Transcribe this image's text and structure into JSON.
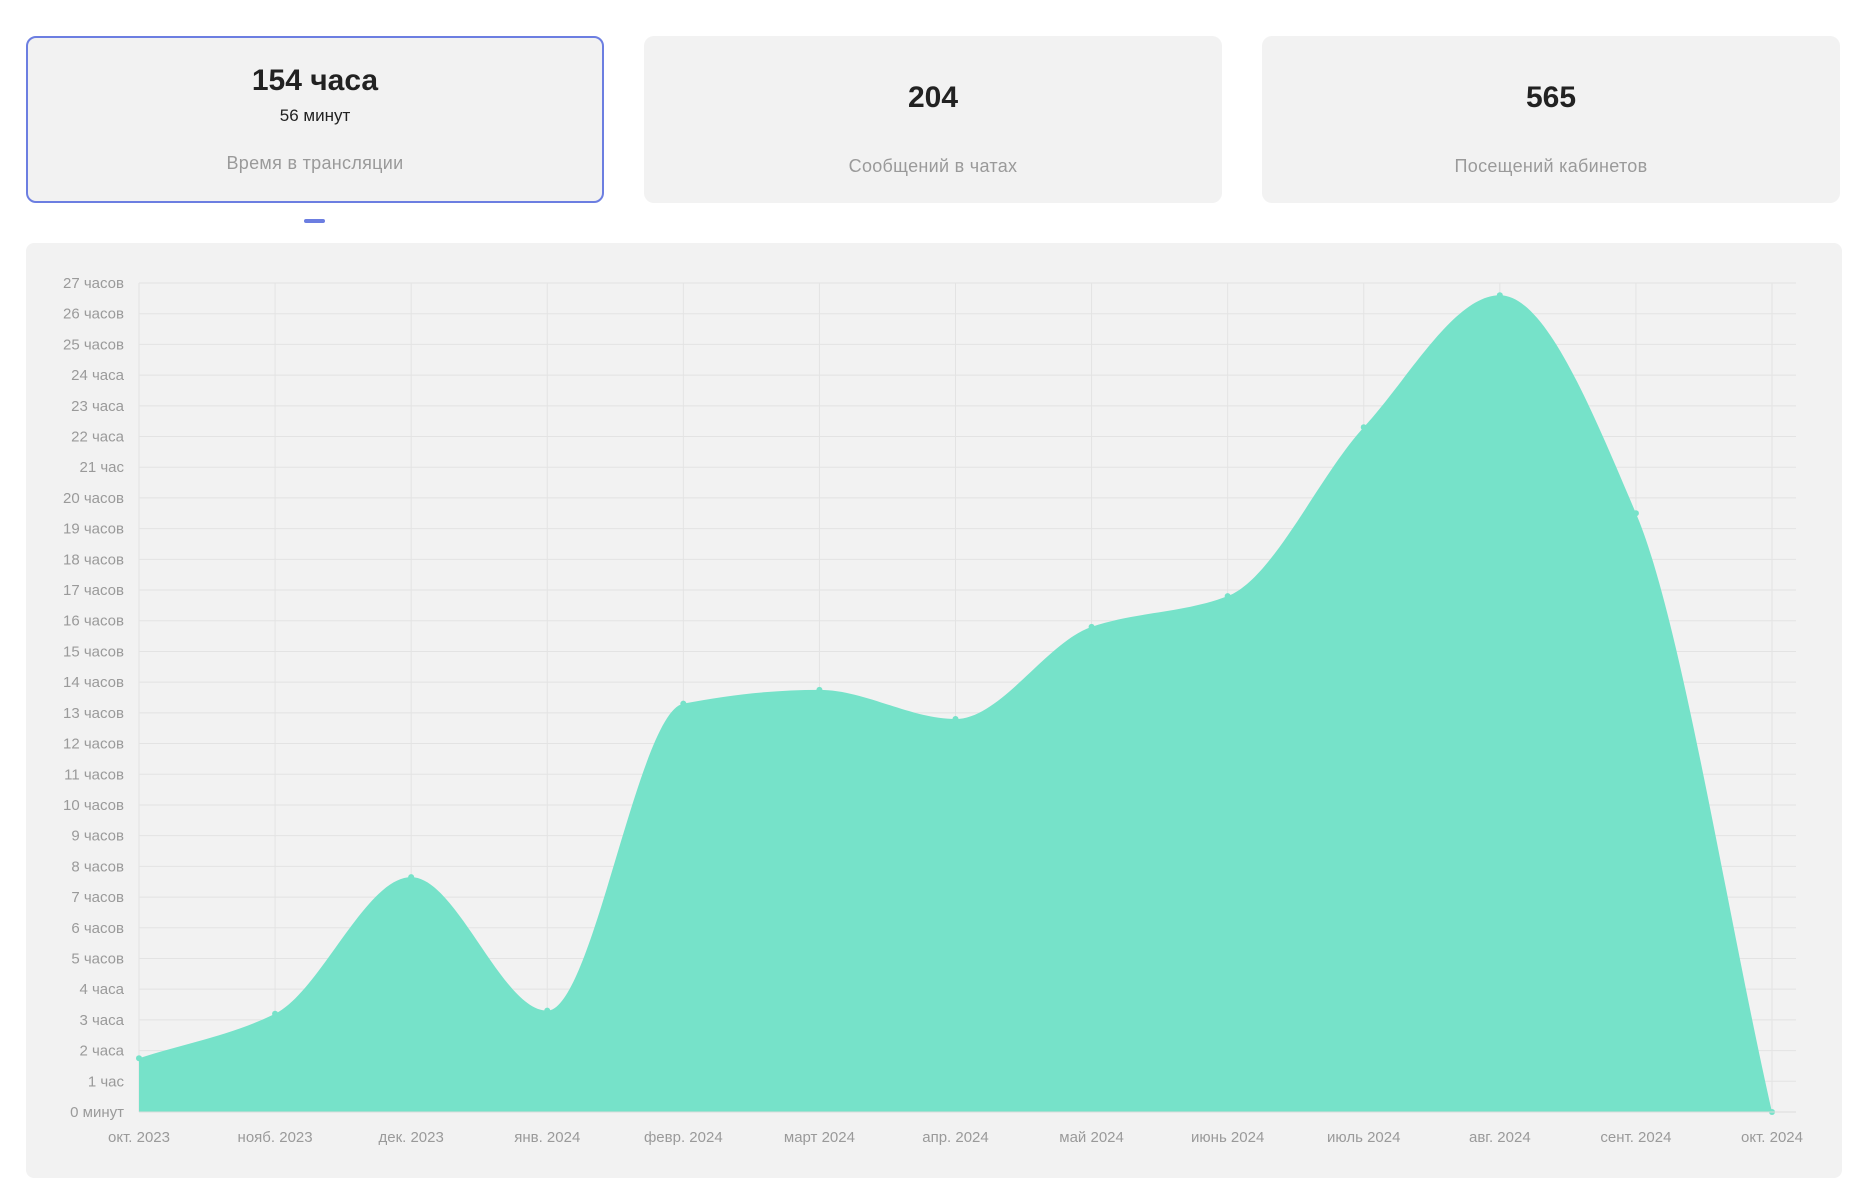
{
  "cards": [
    {
      "value": "154 часа",
      "sub": "56 минут",
      "label": "Время в трансляции",
      "active": true
    },
    {
      "value": "204",
      "sub": "",
      "label": "Сообщений в чатах",
      "active": false
    },
    {
      "value": "565",
      "sub": "",
      "label": "Посещений кабинетов",
      "active": false
    }
  ],
  "chart_data": {
    "type": "area",
    "color": "#76e2c9",
    "grid": true,
    "ylim": [
      0,
      27
    ],
    "y_tick_labels": [
      "0 минут",
      "1 час",
      "2 часа",
      "3 часа",
      "4 часа",
      "5 часов",
      "6 часов",
      "7 часов",
      "8 часов",
      "9 часов",
      "10 часов",
      "11 часов",
      "12 часов",
      "13 часов",
      "14 часов",
      "15 часов",
      "16 часов",
      "17 часов",
      "18 часов",
      "19 часов",
      "20 часов",
      "21 час",
      "22 часа",
      "23 часа",
      "24 часа",
      "25 часов",
      "26 часов",
      "27 часов"
    ],
    "categories": [
      "окт. 2023",
      "нояб. 2023",
      "дек. 2023",
      "янв. 2024",
      "февр. 2024",
      "март 2024",
      "апр. 2024",
      "май 2024",
      "июнь 2024",
      "июль 2024",
      "авг. 2024",
      "сент. 2024",
      "окт. 2024"
    ],
    "values": [
      1.75,
      3.2,
      7.65,
      3.3,
      13.3,
      13.75,
      12.8,
      15.8,
      16.8,
      22.3,
      26.6,
      19.5,
      0
    ]
  }
}
